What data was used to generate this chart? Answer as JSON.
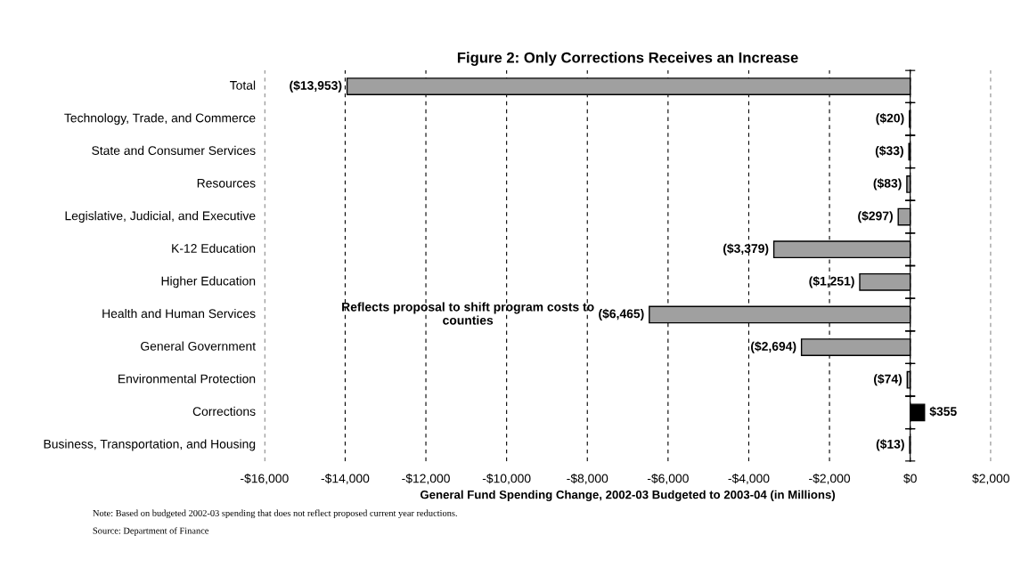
{
  "chart_data": {
    "type": "bar",
    "orientation": "horizontal",
    "title": "Figure 2: Only Corrections Receives an Increase",
    "xlabel": "General Fund Spending Change, 2002-03 Budgeted to 2003-04 (in Millions)",
    "categories": [
      "Total",
      "Technology, Trade, and Commerce",
      "State and Consumer Services",
      "Resources",
      "Legislative, Judicial, and Executive",
      "K-12 Education",
      "Higher Education",
      "Health and Human Services",
      "General Government",
      "Environmental Protection",
      "Corrections",
      "Business, Transportation, and Housing"
    ],
    "values": [
      -13953,
      -20,
      -33,
      -83,
      -297,
      -3379,
      -1251,
      -6465,
      -2694,
      -74,
      355,
      -13
    ],
    "colors": [
      "#a0a0a0",
      "#a0a0a0",
      "#a0a0a0",
      "#a0a0a0",
      "#a0a0a0",
      "#a0a0a0",
      "#a0a0a0",
      "#a0a0a0",
      "#a0a0a0",
      "#a0a0a0",
      "#000000",
      "#a0a0a0"
    ],
    "value_labels": [
      "($13,953)",
      "($20)",
      "($33)",
      "($83)",
      "($297)",
      "($3,379)",
      "($1,251)",
      "($6,465)",
      "($2,694)",
      "($74)",
      "$355",
      "($13)"
    ],
    "xlim": [
      -16000,
      2000
    ],
    "xticks": [
      {
        "value": -16000,
        "label": "-$16,000"
      },
      {
        "value": -14000,
        "label": "-$14,000"
      },
      {
        "value": -12000,
        "label": "-$12,000"
      },
      {
        "value": -10000,
        "label": "-$10,000"
      },
      {
        "value": -8000,
        "label": "-$8,000"
      },
      {
        "value": -6000,
        "label": "-$6,000"
      },
      {
        "value": -4000,
        "label": "-$4,000"
      },
      {
        "value": -2000,
        "label": "-$2,000"
      },
      {
        "value": 0,
        "label": "$0"
      },
      {
        "value": 2000,
        "label": "$2,000"
      }
    ],
    "grid": "x",
    "annotations": [
      "Reflects proposal to shift program costs to\ncounties",
      "Note: Based on budgeted 2002-03 spending that does not reflect proposed current year reductions.",
      "Source: Department of Finance"
    ]
  }
}
